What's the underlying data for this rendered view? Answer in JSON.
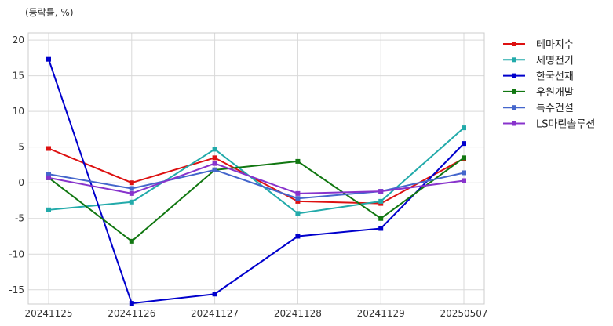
{
  "chart_data": {
    "type": "line",
    "unit_label": "(등락률, %)",
    "categories": [
      "20241125",
      "20241126",
      "20241127",
      "20241128",
      "20241129",
      "20250507"
    ],
    "y_ticks": [
      "20",
      "15",
      "10",
      "5",
      "0",
      "-5",
      "-10",
      "-15"
    ],
    "ylim": [
      -17,
      21
    ],
    "grid": true,
    "legend_position": "right",
    "series": [
      {
        "name": "테마지수",
        "color": "#dd1111",
        "values": [
          4.8,
          0.0,
          3.5,
          -2.6,
          -2.9,
          3.4
        ]
      },
      {
        "name": "세명전기",
        "color": "#22aaaa",
        "values": [
          -3.8,
          -2.7,
          4.7,
          -4.3,
          -2.6,
          7.7
        ]
      },
      {
        "name": "한국선재",
        "color": "#0000cc",
        "values": [
          17.3,
          -16.9,
          -15.6,
          -7.5,
          -6.4,
          5.5
        ]
      },
      {
        "name": "우원개발",
        "color": "#117711",
        "values": [
          0.7,
          -8.2,
          1.8,
          3.0,
          -5.0,
          3.5
        ]
      },
      {
        "name": "특수건설",
        "color": "#4466cc",
        "values": [
          1.2,
          -0.8,
          1.8,
          -2.2,
          -1.2,
          1.4
        ]
      },
      {
        "name": "LS마린솔루션",
        "color": "#8833cc",
        "values": [
          0.7,
          -1.5,
          2.7,
          -1.5,
          -1.2,
          0.3
        ]
      }
    ]
  }
}
